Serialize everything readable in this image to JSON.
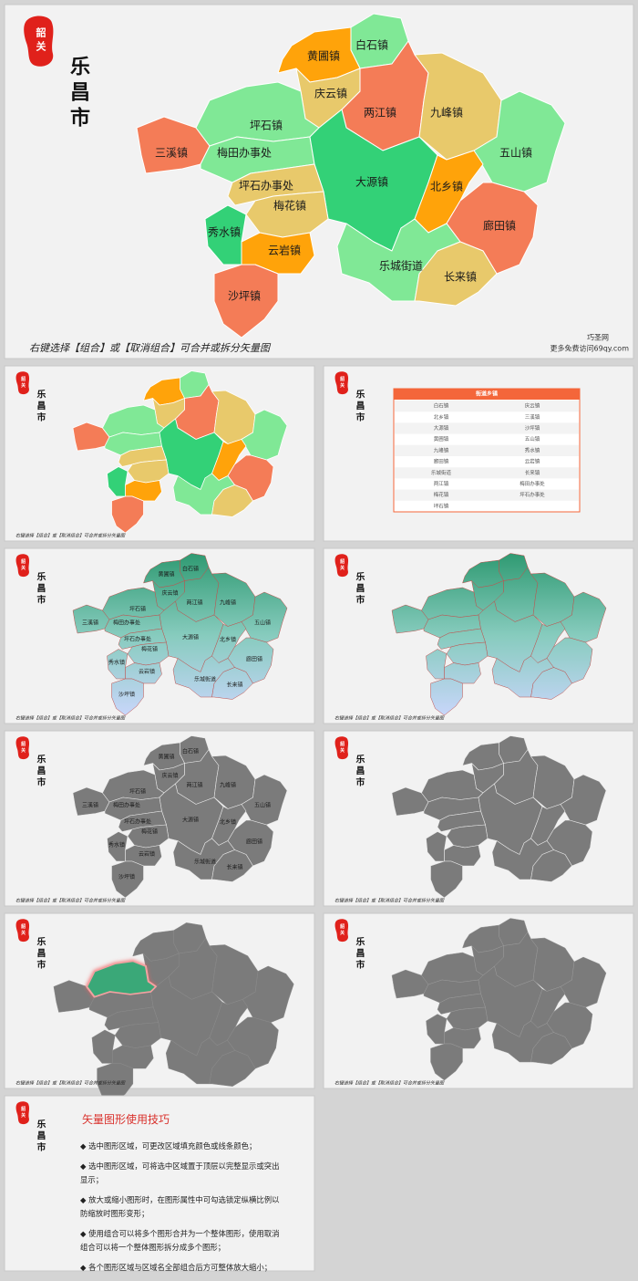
{
  "logo": {
    "seal": "韶关",
    "city": "乐昌市"
  },
  "towns": [
    "白石镇",
    "黄圃镇",
    "两江镇",
    "庆云镇",
    "九峰镇",
    "五山镇",
    "三溪镇",
    "坪石镇",
    "梅田办事处",
    "大源镇",
    "北乡镇",
    "坪石办事处",
    "梅花镇",
    "秀水镇",
    "云岩镇",
    "沙坪镇",
    "廊田镇",
    "乐城街道",
    "长来镇"
  ],
  "caption": "右键选择【组合】或【取消组合】可合并或拆分矢量图",
  "watermark": {
    "site": "巧圣网",
    "url": "更多免费访问69qy.com"
  },
  "table": {
    "title": "街道乡镇",
    "rows": [
      [
        "白石镇",
        "庆云镇"
      ],
      [
        "北乡镇",
        "三溪镇"
      ],
      [
        "大源镇",
        "沙坪镇"
      ],
      [
        "黄圃镇",
        "五山镇"
      ],
      [
        "九峰镇",
        "秀水镇"
      ],
      [
        "廊田镇",
        "云岩镇"
      ],
      [
        "乐城街道",
        "长来镇"
      ],
      [
        "两江镇",
        "梅田办事处"
      ],
      [
        "梅花镇",
        "坪石办事处"
      ],
      [
        "坪石镇"
      ]
    ]
  },
  "tips": {
    "title": "矢量图形使用技巧",
    "items": [
      "◆ 选中图形区域，可更改区域填充颜色或线条颜色；",
      "◆ 选中图形区域，可将选中区域置于顶层以完整显示或突出显示；",
      "◆ 放大或缩小图形时，在图形属性中可勾选锁定纵横比例以防缩放时图形变形；",
      "◆ 使用组合可以将多个图形合并为一个整体图形，使用取消组合可以将一个整体图形拆分成多个图形；",
      "◆ 各个图形区域与区域名全部组合后方可整体放大缩小；"
    ]
  }
}
